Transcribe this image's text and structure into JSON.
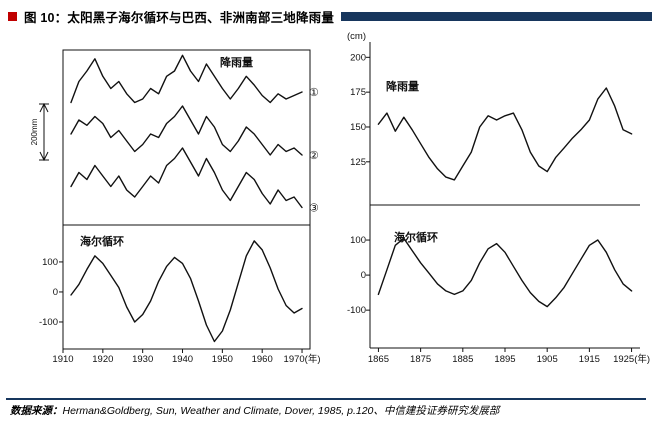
{
  "header": {
    "title": "图 10：太阳黑子海尔循环与巴西、非洲南部三地降雨量",
    "bullet_color": "#c00000",
    "bar_color": "#17365d"
  },
  "footer": {
    "source_label": "数据来源：",
    "source_text": "Herman&Goldberg, Sun, Weather and Climate, Dover, 1985, p.120、中信建投证券研究发展部",
    "rule_color": "#17365d"
  },
  "chart_data": [
    {
      "id": "left-chart-three-sites",
      "type": "line",
      "x_label": "(年)",
      "x_ticks": [
        1910,
        1920,
        1930,
        1940,
        1950,
        1960,
        1970
      ],
      "x_range": [
        1910,
        1972
      ],
      "panels": [
        {
          "name": "rainfall",
          "label": "降雨量",
          "unit": "relative precipitation, 200mm scale bar",
          "scale_bar_label": "200mm",
          "series": [
            {
              "name": "①",
              "x": [
                1912,
                1914,
                1916,
                1918,
                1920,
                1922,
                1924,
                1926,
                1928,
                1930,
                1932,
                1934,
                1936,
                1938,
                1940,
                1942,
                1944,
                1946,
                1948,
                1950,
                1952,
                1954,
                1956,
                1958,
                1960,
                1962,
                1964,
                1966,
                1968,
                1970
              ],
              "y": [
                70,
                82,
                88,
                95,
                85,
                78,
                82,
                75,
                70,
                72,
                78,
                75,
                85,
                88,
                97,
                88,
                82,
                92,
                85,
                78,
                72,
                78,
                85,
                80,
                74,
                70,
                75,
                72,
                74,
                76
              ]
            },
            {
              "name": "②",
              "x": [
                1912,
                1914,
                1916,
                1918,
                1920,
                1922,
                1924,
                1926,
                1928,
                1930,
                1932,
                1934,
                1936,
                1938,
                1940,
                1942,
                1944,
                1946,
                1948,
                1950,
                1952,
                1954,
                1956,
                1958,
                1960,
                1962,
                1964,
                1966,
                1968,
                1970
              ],
              "y": [
                52,
                60,
                57,
                62,
                58,
                50,
                54,
                48,
                42,
                46,
                52,
                50,
                58,
                62,
                68,
                60,
                52,
                62,
                56,
                46,
                42,
                48,
                56,
                52,
                46,
                40,
                46,
                42,
                44,
                40
              ]
            },
            {
              "name": "③",
              "x": [
                1912,
                1914,
                1916,
                1918,
                1920,
                1922,
                1924,
                1926,
                1928,
                1930,
                1932,
                1934,
                1936,
                1938,
                1940,
                1942,
                1944,
                1946,
                1948,
                1950,
                1952,
                1954,
                1956,
                1958,
                1960,
                1962,
                1964,
                1966,
                1968,
                1970
              ],
              "y": [
                22,
                30,
                26,
                34,
                28,
                22,
                28,
                20,
                16,
                22,
                28,
                24,
                34,
                38,
                44,
                36,
                28,
                38,
                30,
                20,
                14,
                22,
                30,
                26,
                18,
                12,
                20,
                14,
                16,
                10
              ]
            }
          ]
        },
        {
          "name": "hale-cycle",
          "label": "海尔循环",
          "y_ticks": [
            100,
            0,
            -100
          ],
          "series": [
            {
              "name": "海尔循环",
              "x": [
                1912,
                1914,
                1916,
                1918,
                1920,
                1922,
                1924,
                1926,
                1928,
                1930,
                1932,
                1934,
                1936,
                1938,
                1940,
                1942,
                1944,
                1946,
                1948,
                1950,
                1952,
                1954,
                1956,
                1958,
                1960,
                1962,
                1964,
                1966,
                1968,
                1970
              ],
              "y": [
                -10,
                25,
                75,
                120,
                95,
                55,
                15,
                -50,
                -100,
                -75,
                -30,
                35,
                85,
                115,
                95,
                45,
                -30,
                -110,
                -165,
                -130,
                -60,
                30,
                120,
                170,
                140,
                80,
                10,
                -45,
                -70,
                -55
              ]
            }
          ]
        }
      ]
    },
    {
      "id": "right-chart",
      "type": "line",
      "x_label": "(年)",
      "x_ticks": [
        1865,
        1875,
        1885,
        1895,
        1905,
        1915,
        1925
      ],
      "x_range": [
        1863,
        1927
      ],
      "y_axis_unit": "(cm)",
      "panels": [
        {
          "name": "rainfall",
          "label": "降雨量",
          "y_ticks": [
            200,
            175,
            150,
            125
          ],
          "series": [
            {
              "name": "降雨量",
              "x": [
                1865,
                1867,
                1869,
                1871,
                1873,
                1875,
                1877,
                1879,
                1881,
                1883,
                1885,
                1887,
                1889,
                1891,
                1893,
                1895,
                1897,
                1899,
                1901,
                1903,
                1905,
                1907,
                1909,
                1911,
                1913,
                1915,
                1917,
                1919,
                1921,
                1923,
                1925
              ],
              "y": [
                152,
                160,
                147,
                157,
                148,
                138,
                128,
                120,
                114,
                112,
                122,
                132,
                150,
                158,
                155,
                158,
                160,
                148,
                132,
                122,
                118,
                128,
                135,
                142,
                148,
                155,
                170,
                178,
                165,
                148,
                145
              ]
            }
          ]
        },
        {
          "name": "hale-cycle",
          "label": "海尔循环",
          "y_ticks": [
            100,
            0,
            -100
          ],
          "series": [
            {
              "name": "海尔循环",
              "x": [
                1865,
                1867,
                1869,
                1871,
                1873,
                1875,
                1877,
                1879,
                1881,
                1883,
                1885,
                1887,
                1889,
                1891,
                1893,
                1895,
                1897,
                1899,
                1901,
                1903,
                1905,
                1907,
                1909,
                1911,
                1913,
                1915,
                1917,
                1919,
                1921,
                1923,
                1925
              ],
              "y": [
                -55,
                15,
                85,
                105,
                70,
                35,
                5,
                -25,
                -45,
                -55,
                -45,
                -15,
                35,
                75,
                90,
                65,
                25,
                -15,
                -50,
                -75,
                -90,
                -65,
                -35,
                5,
                45,
                85,
                100,
                65,
                15,
                -25,
                -45
              ]
            }
          ]
        }
      ]
    }
  ]
}
